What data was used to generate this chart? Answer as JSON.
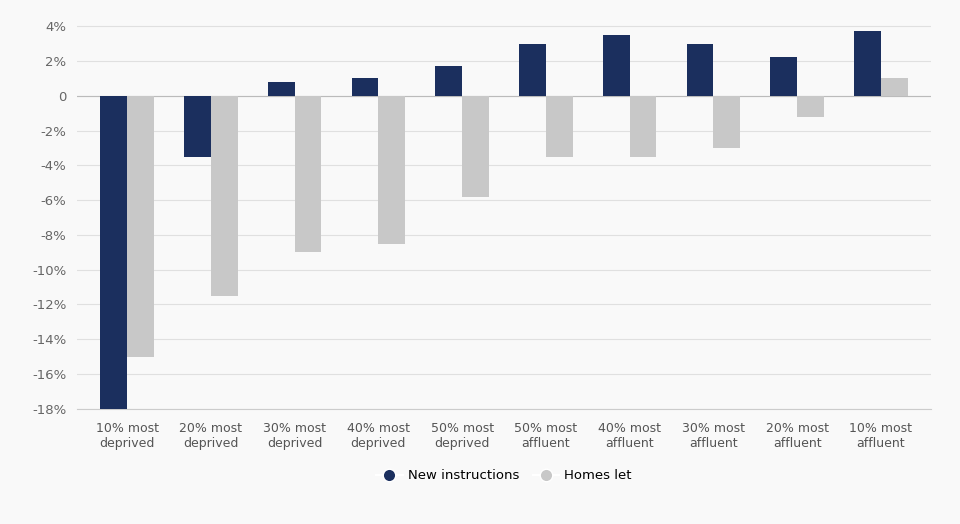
{
  "categories": [
    "10% most\ndeprived",
    "20% most\ndeprived",
    "30% most\ndeprived",
    "40% most\ndeprived",
    "50% most\ndeprived",
    "50% most\naffluent",
    "40% most\naffluent",
    "30% most\naffluent",
    "20% most\naffluent",
    "10% most\naffluent"
  ],
  "new_instructions": [
    -18,
    -3.5,
    0.8,
    1.0,
    1.7,
    3.0,
    3.5,
    3.0,
    2.2,
    3.7
  ],
  "homes_let": [
    -15,
    -11.5,
    -9.0,
    -8.5,
    -5.8,
    -3.5,
    -3.5,
    -3.0,
    -1.2,
    1.0
  ],
  "bar_color_instructions": "#1b2f5e",
  "bar_color_homes": "#c8c8c8",
  "background_color": "#f9f9f9",
  "ylim": [
    -18,
    4
  ],
  "yticks": [
    -18,
    -16,
    -14,
    -12,
    -10,
    -8,
    -6,
    -4,
    -2,
    0,
    2,
    4
  ],
  "ytick_labels": [
    "-18%",
    "-16%",
    "-14%",
    "-12%",
    "-10%",
    "-8%",
    "-6%",
    "-4%",
    "-2%",
    "0",
    "2%",
    "4%"
  ],
  "legend_labels": [
    "New instructions",
    "Homes let"
  ],
  "grid_color": "#e0e0e0",
  "bar_width": 0.32,
  "title": ""
}
